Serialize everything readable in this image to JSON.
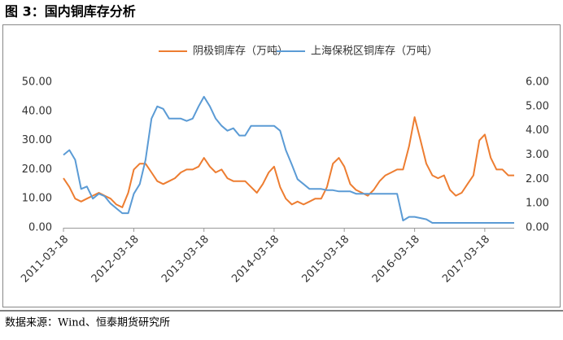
{
  "header": {
    "title": "图 3：国内铜库存分析"
  },
  "footer": {
    "source": "数据来源：Wind、恒泰期货研究所"
  },
  "chart_data": {
    "type": "line",
    "x": [
      "2011-03-18",
      "2011-04-18",
      "2011-05-18",
      "2011-06-18",
      "2011-07-18",
      "2011-08-18",
      "2011-09-18",
      "2011-10-18",
      "2011-11-18",
      "2011-12-18",
      "2012-01-18",
      "2012-02-18",
      "2012-03-18",
      "2012-04-18",
      "2012-05-18",
      "2012-06-18",
      "2012-07-18",
      "2012-08-18",
      "2012-09-18",
      "2012-10-18",
      "2012-11-18",
      "2012-12-18",
      "2013-01-18",
      "2013-02-18",
      "2013-03-18",
      "2013-04-18",
      "2013-05-18",
      "2013-06-18",
      "2013-07-18",
      "2013-08-18",
      "2013-09-18",
      "2013-10-18",
      "2013-11-18",
      "2013-12-18",
      "2014-01-18",
      "2014-02-18",
      "2014-03-18",
      "2014-04-18",
      "2014-05-18",
      "2014-06-18",
      "2014-07-18",
      "2014-08-18",
      "2014-09-18",
      "2014-10-18",
      "2014-11-18",
      "2014-12-18",
      "2015-01-18",
      "2015-02-18",
      "2015-03-18",
      "2015-04-18",
      "2015-05-18",
      "2015-06-18",
      "2015-07-18",
      "2015-08-18",
      "2015-09-18",
      "2015-10-18",
      "2015-11-18",
      "2015-12-18",
      "2016-01-18",
      "2016-02-18",
      "2016-03-18",
      "2016-04-18",
      "2016-05-18",
      "2016-06-18",
      "2016-07-18",
      "2016-08-18",
      "2016-09-18",
      "2016-10-18",
      "2016-11-18",
      "2016-12-18",
      "2017-01-18",
      "2017-02-18",
      "2017-03-18",
      "2017-04-18",
      "2017-05-18",
      "2017-06-18",
      "2017-07-18",
      "2017-08-18"
    ],
    "series": [
      {
        "name": "阴极铜库存（万吨）",
        "color": "#ED7D31",
        "axis": "y",
        "values": [
          17,
          14,
          10,
          9,
          10,
          11,
          12,
          11,
          10,
          8,
          7,
          12,
          20,
          22,
          22,
          19,
          16,
          15,
          16,
          17,
          19,
          20,
          20,
          21,
          24,
          21,
          19,
          20,
          17,
          16,
          16,
          16,
          14,
          12,
          15,
          19,
          21,
          14,
          10,
          8,
          9,
          8,
          9,
          10,
          10,
          14,
          22,
          24,
          21,
          15,
          13,
          12,
          11,
          13,
          16,
          18,
          19,
          20,
          20,
          28,
          38,
          30,
          22,
          18,
          17,
          18,
          13,
          11,
          12,
          15,
          18,
          30,
          32,
          24,
          20,
          20,
          18,
          18
        ]
      },
      {
        "name": "上海保税区铜库存（万吨）",
        "color": "#5B9BD5",
        "axis": "y2",
        "values": [
          3.0,
          3.2,
          2.8,
          1.6,
          1.7,
          1.2,
          1.4,
          1.3,
          1.0,
          0.8,
          0.6,
          0.6,
          1.4,
          1.8,
          2.8,
          4.5,
          5.0,
          4.9,
          4.5,
          4.5,
          4.5,
          4.4,
          4.5,
          5.0,
          5.4,
          5.0,
          4.5,
          4.2,
          4.0,
          4.1,
          3.8,
          3.8,
          4.2,
          4.2,
          4.2,
          4.2,
          4.2,
          4.0,
          3.2,
          2.6,
          2.0,
          1.8,
          1.6,
          1.6,
          1.6,
          1.55,
          1.55,
          1.5,
          1.5,
          1.5,
          1.4,
          1.4,
          1.4,
          1.4,
          1.4,
          1.4,
          1.4,
          1.4,
          0.3,
          0.45,
          0.45,
          0.4,
          0.35,
          0.2,
          0.2,
          0.2,
          0.2,
          0.2,
          0.2,
          0.2,
          0.2,
          0.2,
          0.2,
          0.2,
          0.2,
          0.2,
          0.2,
          0.2
        ]
      }
    ],
    "xlim": [
      "2011-03-18",
      "2017-08-18"
    ],
    "xticks": [
      "2011-03-18",
      "2012-03-18",
      "2013-03-18",
      "2014-03-18",
      "2015-03-18",
      "2016-03-18",
      "2017-03-18"
    ],
    "ylim": [
      0,
      50
    ],
    "yticks": [
      {
        "value": 0,
        "label": "0.00"
      },
      {
        "value": 10,
        "label": "10.00"
      },
      {
        "value": 20,
        "label": "20.00"
      },
      {
        "value": 30,
        "label": "30.00"
      },
      {
        "value": 40,
        "label": "40.00"
      },
      {
        "value": 50,
        "label": "50.00"
      }
    ],
    "y2lim": [
      0,
      6
    ],
    "y2ticks": [
      {
        "value": 0,
        "label": "0.00"
      },
      {
        "value": 1,
        "label": "1.00"
      },
      {
        "value": 2,
        "label": "2.00"
      },
      {
        "value": 3,
        "label": "3.00"
      },
      {
        "value": 4,
        "label": "4.00"
      },
      {
        "value": 5,
        "label": "5.00"
      },
      {
        "value": 6,
        "label": "6.00"
      }
    ],
    "legend": "top"
  }
}
